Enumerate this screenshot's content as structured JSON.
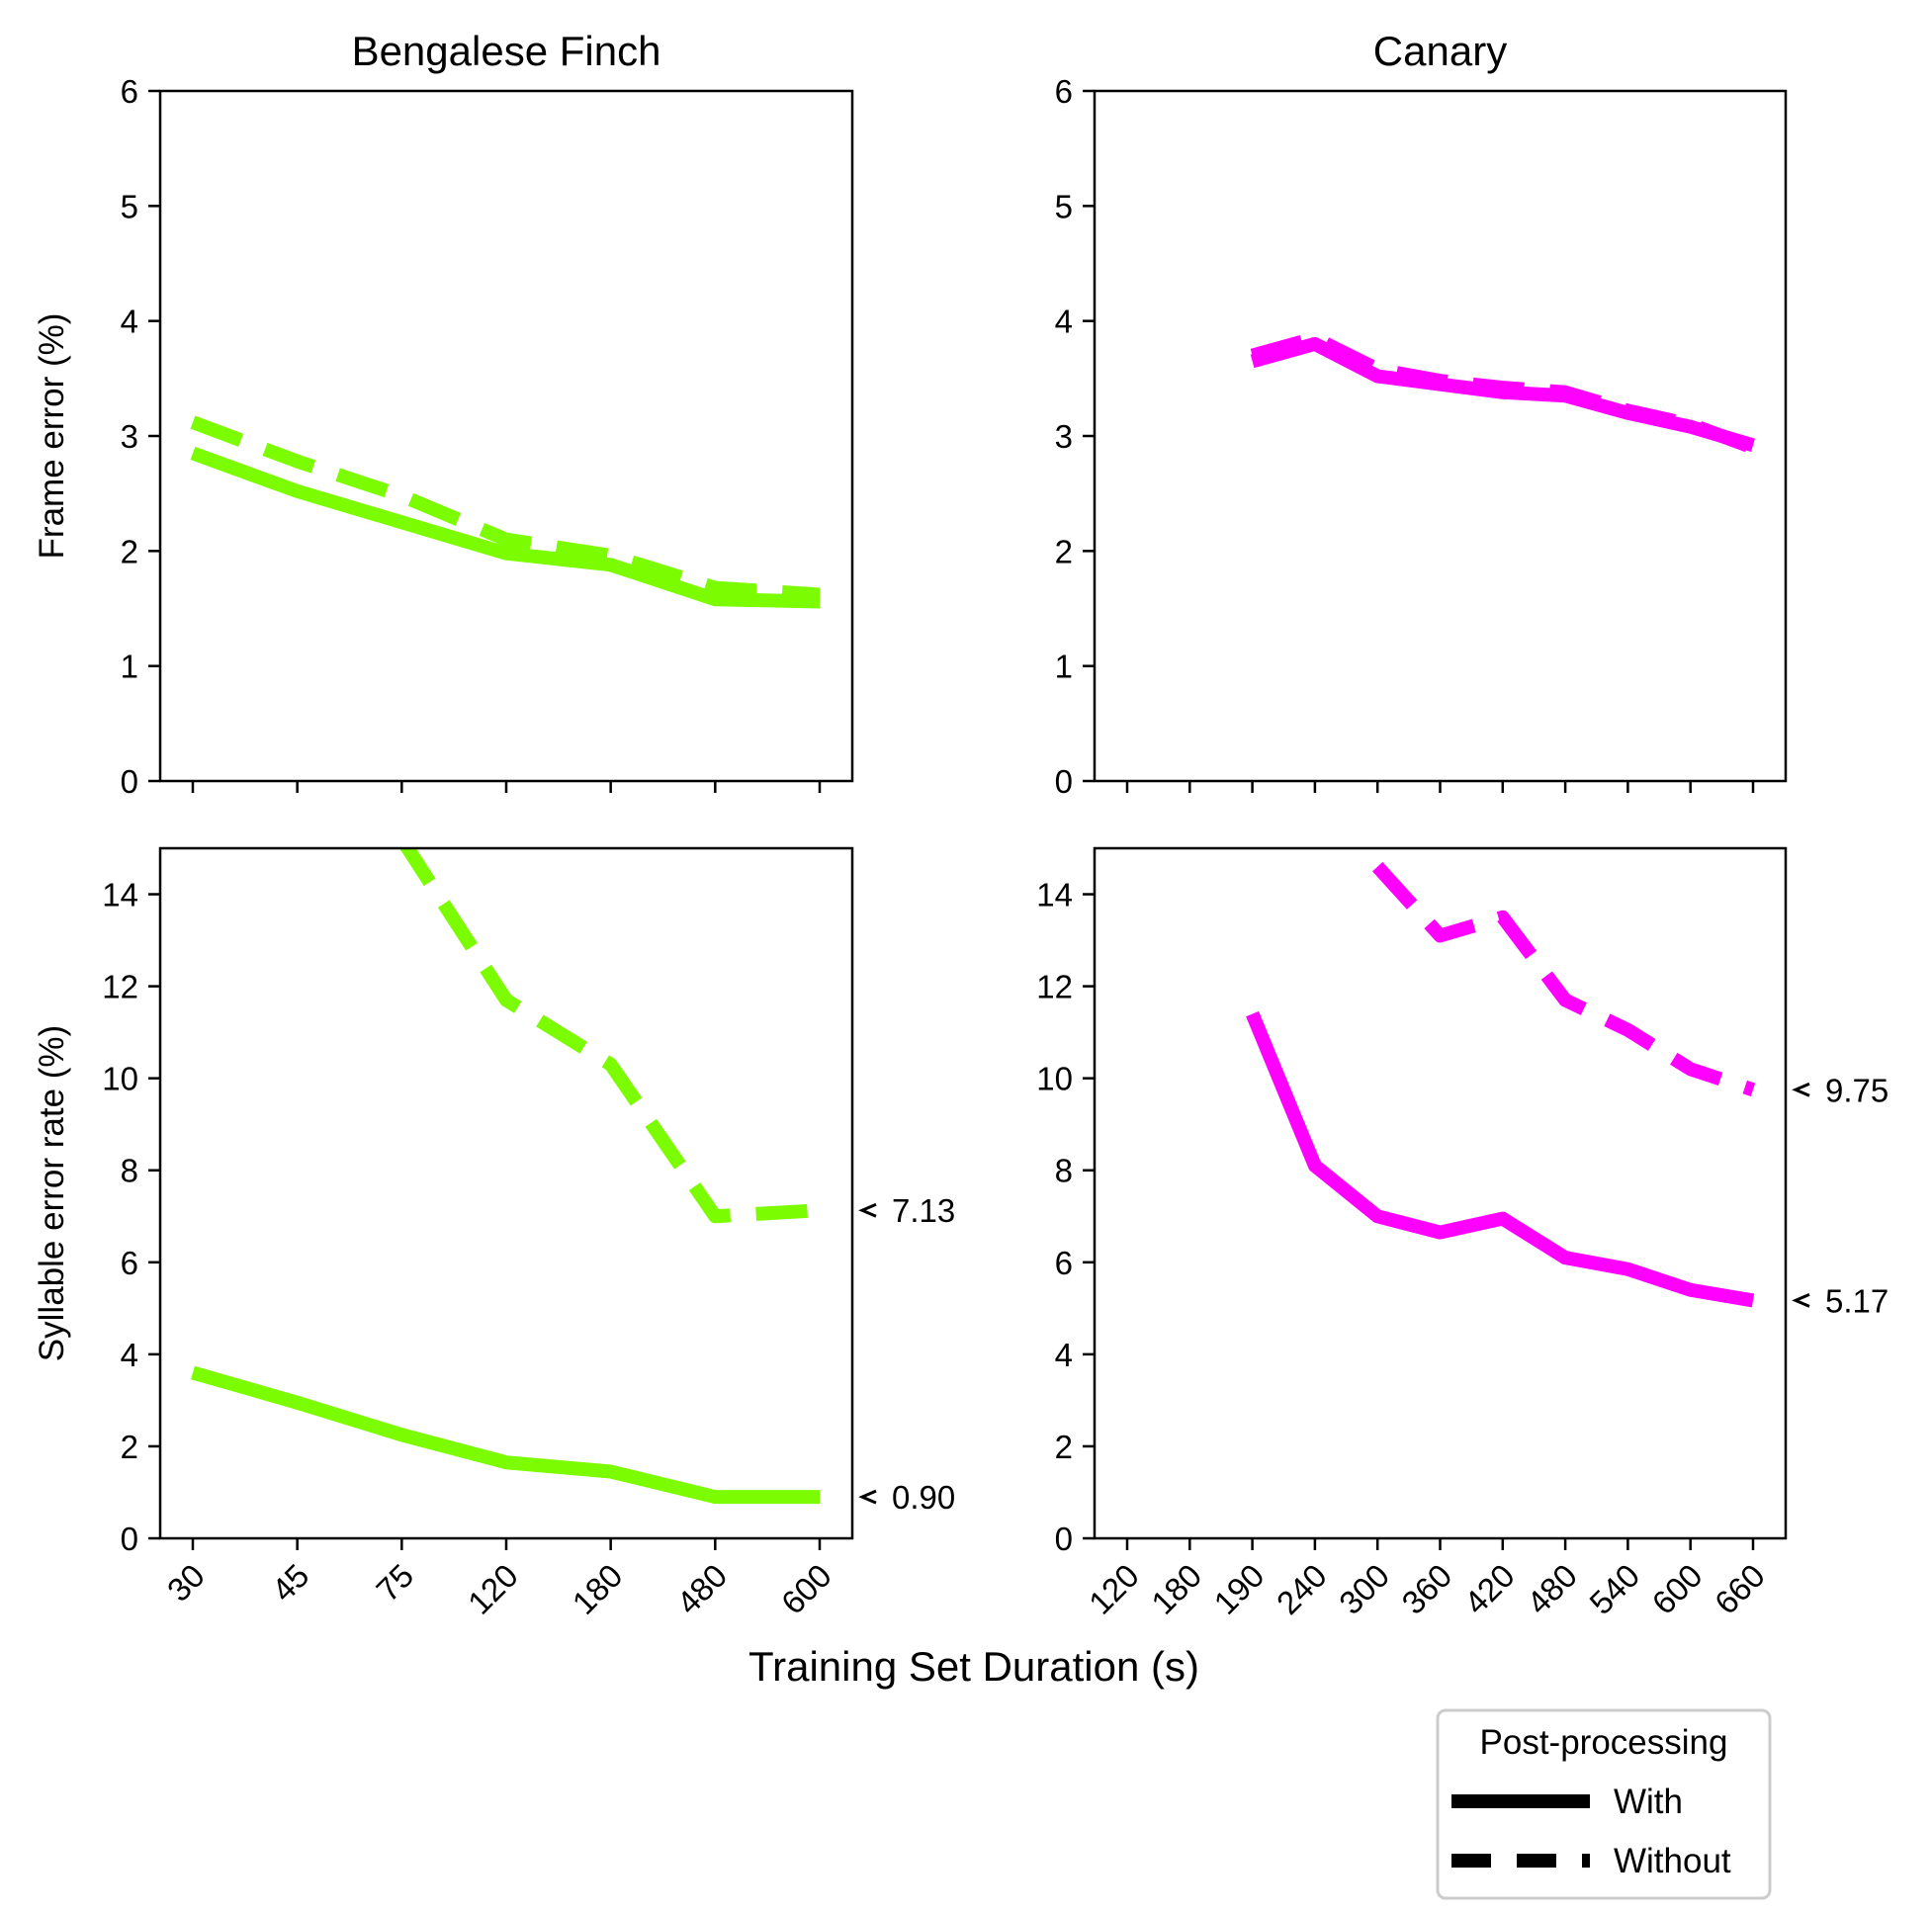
{
  "figure": {
    "xlabel": "Training Set Duration (s)",
    "legend_title": "Post-processing",
    "legend_entries": [
      {
        "label": "With",
        "style": "solid"
      },
      {
        "label": "Without",
        "style": "dashed"
      }
    ],
    "legend_placement": "bottom-right, below plots"
  },
  "colors": {
    "bengalese_finch": "#7cfc00",
    "canary": "#ff00ff",
    "axes": "#000000"
  },
  "chart_data": [
    {
      "type": "line",
      "title": "Bengalese Finch",
      "ylabel": "Frame error (%)",
      "xlabel": "",
      "categories": [
        "30",
        "45",
        "75",
        "120",
        "180",
        "480",
        "600"
      ],
      "ylim": [
        0,
        6
      ],
      "yticks": [
        "0",
        "1",
        "2",
        "3",
        "4",
        "5",
        "6"
      ],
      "show_xticklabels": false,
      "series": [
        {
          "name": "With",
          "style": "solid",
          "x": [
            "30",
            "45",
            "75",
            "120",
            "180",
            "480",
            "600"
          ],
          "values": [
            2.85,
            2.52,
            2.25,
            1.98,
            1.88,
            1.58,
            1.56
          ]
        },
        {
          "name": "Without",
          "style": "dashed",
          "x": [
            "30",
            "45",
            "75",
            "120",
            "180",
            "480",
            "600"
          ],
          "values": [
            3.12,
            2.78,
            2.48,
            2.1,
            1.96,
            1.68,
            1.62
          ]
        }
      ],
      "annotations": []
    },
    {
      "type": "line",
      "title": "Canary",
      "ylabel": "",
      "xlabel": "",
      "categories": [
        "120",
        "180",
        "190",
        "240",
        "300",
        "360",
        "420",
        "480",
        "540",
        "600",
        "660"
      ],
      "ylim": [
        0,
        6
      ],
      "yticks": [
        "0",
        "1",
        "2",
        "3",
        "4",
        "5",
        "6"
      ],
      "show_xticklabels": false,
      "series": [
        {
          "name": "With",
          "style": "solid",
          "x": [
            "190",
            "240",
            "300",
            "360",
            "420",
            "480",
            "540",
            "600",
            "660"
          ],
          "values": [
            3.65,
            3.8,
            3.52,
            3.45,
            3.38,
            3.35,
            3.2,
            3.08,
            2.92
          ]
        },
        {
          "name": "Without",
          "style": "dashed",
          "x": [
            "190",
            "240",
            "300",
            "360",
            "420",
            "480",
            "540",
            "600",
            "660"
          ],
          "values": [
            3.7,
            3.85,
            3.58,
            3.48,
            3.42,
            3.38,
            3.22,
            3.1,
            2.9
          ]
        }
      ],
      "annotations": []
    },
    {
      "type": "line",
      "title": "",
      "ylabel": "Syllable error rate (%)",
      "xlabel": "",
      "categories": [
        "30",
        "45",
        "75",
        "120",
        "180",
        "480",
        "600"
      ],
      "ylim": [
        0,
        15
      ],
      "yticks": [
        "0",
        "2",
        "4",
        "6",
        "8",
        "10",
        "12",
        "14"
      ],
      "show_xticklabels": true,
      "series": [
        {
          "name": "With",
          "style": "solid",
          "x": [
            "30",
            "45",
            "75",
            "120",
            "180",
            "480",
            "600"
          ],
          "values": [
            3.6,
            2.95,
            2.25,
            1.65,
            1.45,
            0.9,
            0.9
          ]
        },
        {
          "name": "Without",
          "style": "dashed",
          "x": [
            "75",
            "120",
            "180",
            "480",
            "600"
          ],
          "values": [
            15.2,
            11.7,
            10.3,
            7.0,
            7.13
          ]
        }
      ],
      "annotations": [
        {
          "text": "7.13",
          "y": 7.13
        },
        {
          "text": "0.90",
          "y": 0.9
        }
      ]
    },
    {
      "type": "line",
      "title": "",
      "ylabel": "",
      "xlabel": "",
      "categories": [
        "120",
        "180",
        "190",
        "240",
        "300",
        "360",
        "420",
        "480",
        "540",
        "600",
        "660"
      ],
      "ylim": [
        0,
        15
      ],
      "yticks": [
        "0",
        "2",
        "4",
        "6",
        "8",
        "10",
        "12",
        "14"
      ],
      "show_xticklabels": true,
      "series": [
        {
          "name": "With",
          "style": "solid",
          "x": [
            "190",
            "240",
            "300",
            "360",
            "420",
            "480",
            "540",
            "600",
            "660"
          ],
          "values": [
            11.4,
            8.1,
            7.0,
            6.65,
            6.95,
            6.1,
            5.85,
            5.4,
            5.17
          ]
        },
        {
          "name": "Without",
          "style": "dashed",
          "x": [
            "300",
            "360",
            "420",
            "480",
            "540",
            "600",
            "660"
          ],
          "values": [
            14.6,
            13.1,
            13.5,
            11.7,
            11.05,
            10.2,
            9.75
          ]
        }
      ],
      "annotations": [
        {
          "text": "9.75",
          "y": 9.75
        },
        {
          "text": "5.17",
          "y": 5.17
        }
      ]
    }
  ]
}
